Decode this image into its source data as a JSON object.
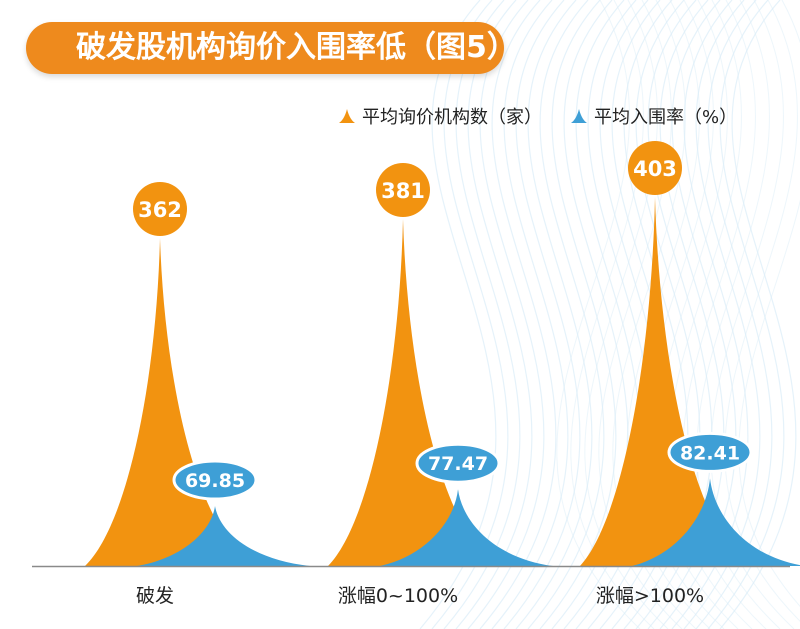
{
  "title": "破发股机构询价入围率低（图5）",
  "colors": {
    "accent": "#ee8a1d",
    "series_orange": "#f29310",
    "series_blue": "#3e9fd6",
    "axis": "#8a8a8a"
  },
  "chart_data": {
    "type": "area",
    "categories": [
      "破发",
      "涨幅0~100%",
      "涨幅>100%"
    ],
    "series": [
      {
        "name": "平均询价机构数（家）",
        "values": [
          362,
          381,
          403
        ]
      },
      {
        "name": "平均入围率（%）",
        "values": [
          69.85,
          77.47,
          82.41
        ]
      }
    ],
    "data_labels": [
      [
        "362",
        "381",
        "403"
      ],
      [
        "69.85",
        "77.47",
        "82.41"
      ]
    ],
    "legend": "top-right"
  }
}
